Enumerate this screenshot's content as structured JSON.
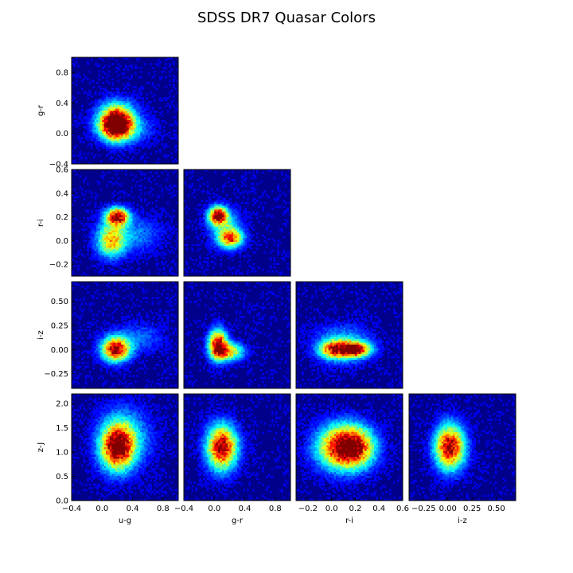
{
  "chart_data": {
    "type": "heatmap",
    "title": "SDSS DR7 Quasar Colors",
    "colormap": "jet",
    "background": "#00008b",
    "grid": false,
    "variables": [
      "u-g",
      "g-r",
      "r-i",
      "i-z",
      "z-J"
    ],
    "axes": {
      "u-g": {
        "range": [
          -0.4,
          1.0
        ],
        "ticks": [
          -0.4,
          0.0,
          0.4,
          0.8
        ],
        "tick_labels": [
          "−0.4",
          "0.0",
          "0.4",
          "0.8"
        ]
      },
      "g-r": {
        "range": [
          -0.4,
          1.0
        ],
        "ticks": [
          -0.4,
          0.0,
          0.4,
          0.8
        ],
        "tick_labels": [
          "−0.4",
          "0.0",
          "0.4",
          "0.8"
        ]
      },
      "r-i": {
        "range": [
          -0.3,
          0.6
        ],
        "ticks": [
          -0.2,
          0.0,
          0.2,
          0.4,
          0.6
        ],
        "tick_labels": [
          "−0.2",
          "0.0",
          "0.2",
          "0.4",
          "0.6"
        ]
      },
      "i-z": {
        "range": [
          -0.4,
          0.7
        ],
        "ticks": [
          -0.25,
          0.0,
          0.25,
          0.5
        ],
        "tick_labels": [
          "−0.25",
          "0.00",
          "0.25",
          "0.50"
        ]
      },
      "z-J": {
        "range": [
          0.0,
          2.2
        ],
        "ticks": [
          0.0,
          0.5,
          1.0,
          1.5,
          2.0
        ],
        "tick_labels": [
          "0.0",
          "0.5",
          "1.0",
          "1.5",
          "2.0"
        ]
      }
    },
    "y_tick_labels": {
      "g-r": [
        "−0.4",
        "0.0",
        "0.4",
        "0.8"
      ],
      "r-i": [
        "−0.2",
        "0.0",
        "0.2",
        "0.4",
        "0.6"
      ],
      "i-z": [
        "−0.25",
        "0.00",
        "0.25",
        "0.50"
      ],
      "z-J": [
        "0.0",
        "0.5",
        "1.0",
        "1.5",
        "2.0"
      ]
    },
    "y_ticks": {
      "g-r": [
        -0.4,
        0.0,
        0.4,
        0.8
      ],
      "r-i": [
        -0.2,
        0.0,
        0.2,
        0.4,
        0.6
      ],
      "i-z": [
        -0.25,
        0.0,
        0.25,
        0.5
      ],
      "z-J": [
        0.0,
        0.5,
        1.0,
        1.5,
        2.0
      ]
    },
    "panels": [
      {
        "x": "u-g",
        "y": "g-r",
        "peaks": [
          {
            "x": 0.18,
            "y": 0.1,
            "sx": 0.13,
            "sy": 0.12,
            "w": 1.0
          },
          {
            "x": 0.2,
            "y": 0.22,
            "sx": 0.16,
            "sy": 0.14,
            "w": 0.55
          },
          {
            "x": 0.3,
            "y": 0.05,
            "sx": 0.22,
            "sy": 0.12,
            "w": 0.25
          }
        ]
      },
      {
        "x": "u-g",
        "y": "r-i",
        "peaks": [
          {
            "x": 0.2,
            "y": 0.2,
            "sx": 0.1,
            "sy": 0.05,
            "w": 1.0
          },
          {
            "x": 0.12,
            "y": 0.0,
            "sx": 0.12,
            "sy": 0.09,
            "w": 0.6
          },
          {
            "x": 0.4,
            "y": 0.05,
            "sx": 0.25,
            "sy": 0.1,
            "w": 0.18
          }
        ]
      },
      {
        "x": "g-r",
        "y": "r-i",
        "peaks": [
          {
            "x": 0.05,
            "y": 0.21,
            "sx": 0.08,
            "sy": 0.05,
            "w": 1.0
          },
          {
            "x": 0.22,
            "y": 0.02,
            "sx": 0.1,
            "sy": 0.05,
            "w": 0.7
          },
          {
            "x": 0.15,
            "y": 0.1,
            "sx": 0.14,
            "sy": 0.1,
            "w": 0.3
          }
        ]
      },
      {
        "x": "u-g",
        "y": "i-z",
        "peaks": [
          {
            "x": 0.18,
            "y": 0.0,
            "sx": 0.12,
            "sy": 0.08,
            "w": 1.0
          },
          {
            "x": 0.45,
            "y": 0.12,
            "sx": 0.25,
            "sy": 0.1,
            "w": 0.15
          }
        ]
      },
      {
        "x": "g-r",
        "y": "i-z",
        "peaks": [
          {
            "x": 0.05,
            "y": 0.05,
            "sx": 0.08,
            "sy": 0.1,
            "w": 1.0
          },
          {
            "x": 0.2,
            "y": -0.02,
            "sx": 0.12,
            "sy": 0.06,
            "w": 0.6
          }
        ]
      },
      {
        "x": "r-i",
        "y": "i-z",
        "peaks": [
          {
            "x": 0.2,
            "y": 0.0,
            "sx": 0.08,
            "sy": 0.05,
            "w": 1.0
          },
          {
            "x": 0.02,
            "y": 0.0,
            "sx": 0.08,
            "sy": 0.06,
            "w": 0.7
          },
          {
            "x": 0.1,
            "y": 0.05,
            "sx": 0.15,
            "sy": 0.12,
            "w": 0.3
          }
        ]
      },
      {
        "x": "u-g",
        "y": "z-J",
        "peaks": [
          {
            "x": 0.2,
            "y": 1.1,
            "sx": 0.14,
            "sy": 0.3,
            "w": 1.0
          },
          {
            "x": 0.3,
            "y": 1.3,
            "sx": 0.22,
            "sy": 0.4,
            "w": 0.3
          }
        ]
      },
      {
        "x": "g-r",
        "y": "z-J",
        "peaks": [
          {
            "x": 0.1,
            "y": 1.1,
            "sx": 0.13,
            "sy": 0.3,
            "w": 1.0
          }
        ]
      },
      {
        "x": "r-i",
        "y": "z-J",
        "peaks": [
          {
            "x": 0.1,
            "y": 1.1,
            "sx": 0.14,
            "sy": 0.3,
            "w": 1.0
          },
          {
            "x": 0.22,
            "y": 1.1,
            "sx": 0.1,
            "sy": 0.25,
            "w": 0.4
          }
        ]
      },
      {
        "x": "i-z",
        "y": "z-J",
        "peaks": [
          {
            "x": 0.02,
            "y": 1.1,
            "sx": 0.1,
            "sy": 0.3,
            "w": 1.0
          }
        ]
      }
    ]
  }
}
